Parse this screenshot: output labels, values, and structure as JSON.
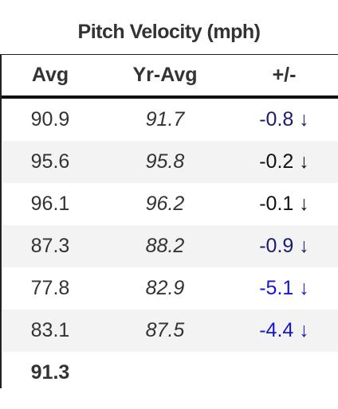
{
  "title": "Pitch Velocity (mph)",
  "table": {
    "header": [
      "Avg",
      "Yr-Avg",
      "+/-"
    ],
    "rows": [
      {
        "cells": [
          "90.9",
          "91.7",
          "-0.8 ↓"
        ],
        "color": "#1a1a6e"
      },
      {
        "cells": [
          "95.6",
          "95.8",
          "-0.2 ↓"
        ],
        "color": "#111111"
      },
      {
        "cells": [
          "96.1",
          "96.2",
          "-0.1 ↓"
        ],
        "color": "#111111"
      },
      {
        "cells": [
          "87.3",
          "88.2",
          "-0.9 ↓"
        ],
        "color": "#1a1a6e"
      },
      {
        "cells": [
          "77.8",
          "82.9",
          "-5.1 ↓"
        ],
        "color": "#1515d0"
      },
      {
        "cells": [
          "83.1",
          "87.5",
          "-4.4 ↓"
        ],
        "color": "#1515d0"
      }
    ],
    "footer": "91.3"
  }
}
